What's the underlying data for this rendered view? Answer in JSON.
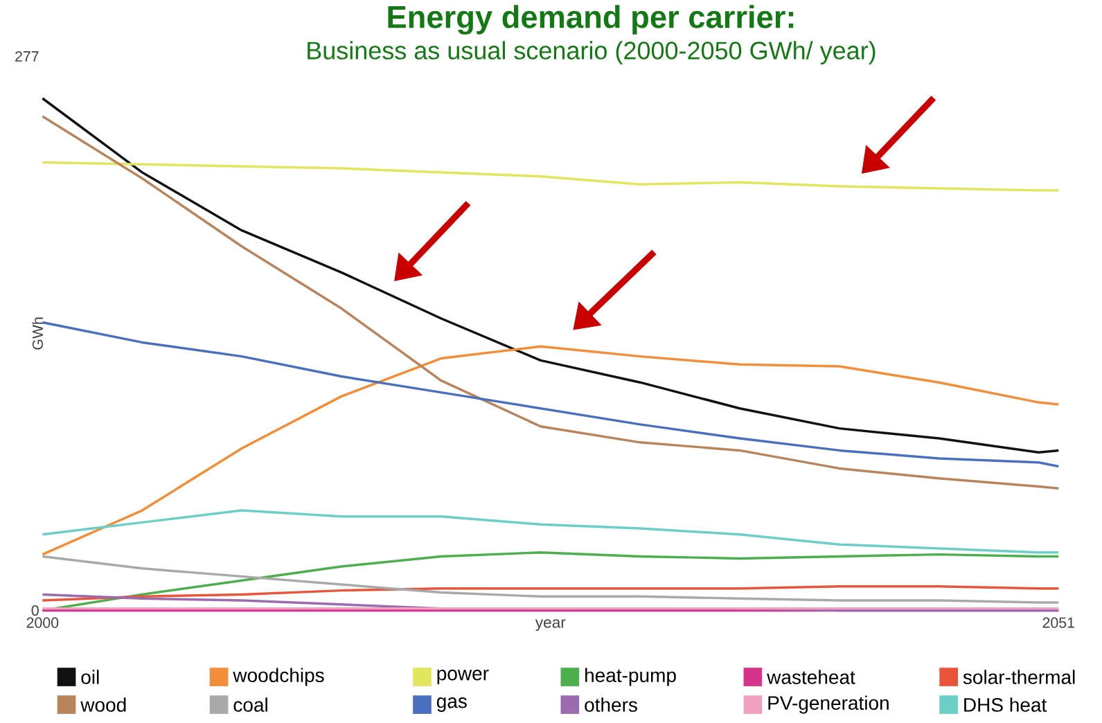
{
  "chart_data": {
    "type": "line",
    "title": "Energy demand per carrier:",
    "subtitle": "Business as usual scenario (2000-2050 GWh/ year)",
    "xlabel": "year",
    "ylabel": "GWh",
    "xlim": [
      2000,
      2051
    ],
    "xticks": [
      2000,
      2051
    ],
    "ylim": [
      0,
      277
    ],
    "yticks": [
      0,
      277
    ],
    "legend": "bottom",
    "grid": false,
    "marker": "none",
    "x": [
      2000,
      2005,
      2010,
      2015,
      2020,
      2025,
      2030,
      2035,
      2040,
      2045,
      2050,
      2051
    ],
    "series": [
      {
        "name": "oil",
        "color": "#111111",
        "values": [
          256,
          219,
          190,
          169,
          146,
          125,
          114,
          101,
          91,
          86,
          79,
          80
        ]
      },
      {
        "name": "woodchips",
        "color": "#f28e3a",
        "values": [
          28,
          50,
          81,
          107,
          126,
          132,
          127,
          123,
          122,
          114,
          104,
          103
        ]
      },
      {
        "name": "power",
        "color": "#e2e65c",
        "values": [
          224,
          223,
          222,
          221,
          219,
          217,
          213,
          214,
          212,
          211,
          210,
          210
        ]
      },
      {
        "name": "heat-pump",
        "color": "#4cae4c",
        "values": [
          0,
          8,
          15,
          22,
          27,
          29,
          27,
          26,
          27,
          28,
          27,
          27
        ]
      },
      {
        "name": "wasteheat",
        "color": "#d6338a",
        "values": [
          0,
          0,
          0,
          0,
          0,
          0,
          0,
          0,
          0,
          0,
          0,
          0
        ]
      },
      {
        "name": "solar-thermal",
        "color": "#e8553a",
        "values": [
          5,
          7,
          8,
          10,
          11,
          11,
          11,
          11,
          12,
          12,
          11,
          11
        ]
      },
      {
        "name": "wood",
        "color": "#b8845c",
        "values": [
          247,
          216,
          182,
          151,
          115,
          92,
          84,
          80,
          71,
          66,
          62,
          61
        ]
      },
      {
        "name": "coal",
        "color": "#a9a9a9",
        "values": [
          27,
          21,
          17,
          13,
          9,
          7,
          7,
          6,
          5,
          5,
          4,
          4
        ]
      },
      {
        "name": "gas",
        "color": "#4a6fbf",
        "values": [
          144,
          134,
          127,
          117,
          109,
          101,
          93,
          86,
          80,
          76,
          74,
          72
        ]
      },
      {
        "name": "others",
        "color": "#9b6bb0",
        "values": [
          8,
          6,
          5,
          3,
          1,
          1,
          1,
          1,
          0,
          0,
          0,
          0
        ]
      },
      {
        "name": "PV-generation",
        "color": "#f2a0c0",
        "values": [
          1,
          1,
          1,
          1,
          1,
          1,
          1,
          1,
          1,
          1,
          1,
          1
        ]
      },
      {
        "name": "DHS heat",
        "color": "#6ccfc6",
        "values": [
          38,
          44,
          50,
          47,
          47,
          43,
          41,
          38,
          33,
          31,
          29,
          29
        ]
      }
    ]
  }
}
